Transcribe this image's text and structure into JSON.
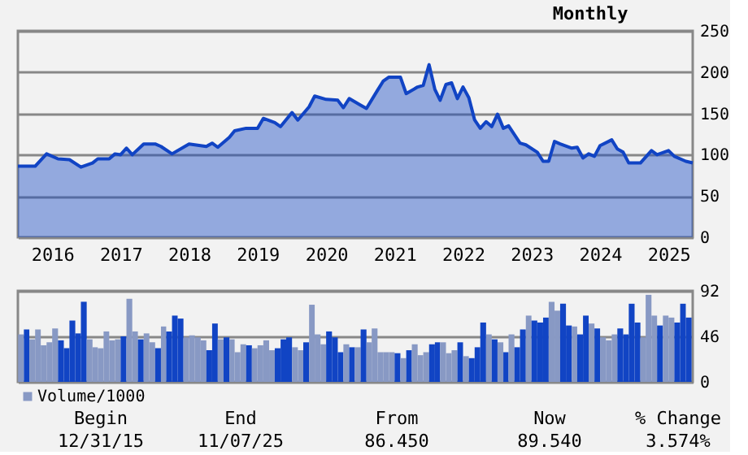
{
  "chart_data": [
    {
      "type": "area",
      "subtitle": "Monthly",
      "xlim": [
        "2015-12-31",
        "2025-11-07"
      ],
      "xticks": [
        {
          "value": "2016-07",
          "label": "2016"
        },
        {
          "value": "2017-07",
          "label": "2017"
        },
        {
          "value": "2018-07",
          "label": "2018"
        },
        {
          "value": "2019-07",
          "label": "2019"
        },
        {
          "value": "2020-07",
          "label": "2020"
        },
        {
          "value": "2021-07",
          "label": "2021"
        },
        {
          "value": "2022-07",
          "label": "2022"
        },
        {
          "value": "2023-07",
          "label": "2023"
        },
        {
          "value": "2024-07",
          "label": "2024"
        },
        {
          "value": "2025-07",
          "label": "2025"
        }
      ],
      "ylim": [
        0,
        250
      ],
      "yticks": [
        0,
        50,
        100,
        150,
        200,
        250
      ],
      "grid": "y",
      "x": [
        "2015-12-31",
        "2016-04",
        "2016-06",
        "2016-08",
        "2016-10",
        "2016-12",
        "2017-02",
        "2017-03",
        "2017-05",
        "2017-06",
        "2017-07",
        "2017-08",
        "2017-09",
        "2017-11",
        "2018-01",
        "2018-02",
        "2018-04",
        "2018-07",
        "2018-10",
        "2018-11",
        "2018-12",
        "2019-02",
        "2019-03",
        "2019-05",
        "2019-07",
        "2019-08",
        "2019-10",
        "2019-11",
        "2020-01",
        "2020-02",
        "2020-04",
        "2020-05",
        "2020-07",
        "2020-09",
        "2020-10",
        "2020-11",
        "2021-01",
        "2021-02",
        "2021-04",
        "2021-05",
        "2021-06",
        "2021-08",
        "2021-09",
        "2021-11",
        "2021-12",
        "2022-01",
        "2022-02",
        "2022-03",
        "2022-04",
        "2022-05",
        "2022-06",
        "2022-07",
        "2022-08",
        "2022-09",
        "2022-10",
        "2022-11",
        "2022-12",
        "2023-01",
        "2023-02",
        "2023-03",
        "2023-05",
        "2023-06",
        "2023-08",
        "2023-09",
        "2023-10",
        "2023-11",
        "2023-12",
        "2024-02",
        "2024-03",
        "2024-04",
        "2024-05",
        "2024-06",
        "2024-07",
        "2024-09",
        "2024-10",
        "2024-11",
        "2024-12",
        "2025-02",
        "2025-04",
        "2025-05",
        "2025-07",
        "2025-08",
        "2025-10",
        "2025-11-07"
      ],
      "series": [
        {
          "color": "#1144c4",
          "values": [
            86,
            86,
            101,
            95,
            94,
            85,
            90,
            95,
            95,
            101,
            100,
            108,
            100,
            113,
            113,
            110,
            101,
            113,
            110,
            114,
            109,
            121,
            129,
            132,
            132,
            144,
            139,
            134,
            151,
            142,
            158,
            171,
            167,
            166,
            157,
            168,
            160,
            156,
            178,
            189,
            194,
            194,
            174,
            182,
            184,
            209,
            179,
            166,
            185,
            187,
            168,
            182,
            169,
            142,
            132,
            140,
            134,
            149,
            132,
            135,
            114,
            112,
            103,
            92,
            92,
            116,
            113,
            108,
            109,
            96,
            101,
            98,
            111,
            118,
            107,
            103,
            90,
            90,
            105,
            100,
            105,
            98,
            92,
            90
          ]
        }
      ]
    },
    {
      "type": "bar",
      "xlim": [
        "2015-12-31",
        "2025-11-07"
      ],
      "ylim": [
        0,
        92
      ],
      "yticks": [
        0,
        46,
        92
      ],
      "grid": "y",
      "tick_labels": "y",
      "legend": "bottom left",
      "x": [
        "2016-01",
        "2016-02",
        "2016-03",
        "2016-04",
        "2016-05",
        "2016-06",
        "2016-07",
        "2016-08",
        "2016-09",
        "2016-10",
        "2016-11",
        "2016-12",
        "2017-01",
        "2017-02",
        "2017-03",
        "2017-04",
        "2017-05",
        "2017-06",
        "2017-07",
        "2017-08",
        "2017-09",
        "2017-10",
        "2017-11",
        "2017-12",
        "2018-01",
        "2018-02",
        "2018-03",
        "2018-04",
        "2018-05",
        "2018-06",
        "2018-07",
        "2018-08",
        "2018-09",
        "2018-10",
        "2018-11",
        "2018-12",
        "2019-01",
        "2019-02",
        "2019-03",
        "2019-04",
        "2019-05",
        "2019-06",
        "2019-07",
        "2019-08",
        "2019-09",
        "2019-10",
        "2019-11",
        "2019-12",
        "2020-01",
        "2020-02",
        "2020-03",
        "2020-04",
        "2020-05",
        "2020-06",
        "2020-07",
        "2020-08",
        "2020-09",
        "2020-10",
        "2020-11",
        "2020-12",
        "2021-01",
        "2021-02",
        "2021-03",
        "2021-04",
        "2021-05",
        "2021-06",
        "2021-07",
        "2021-08",
        "2021-09",
        "2021-10",
        "2021-11",
        "2021-12",
        "2022-01",
        "2022-02",
        "2022-03",
        "2022-04",
        "2022-05",
        "2022-06",
        "2022-07",
        "2022-08",
        "2022-09",
        "2022-10",
        "2022-11",
        "2022-12",
        "2023-01",
        "2023-02",
        "2023-03",
        "2023-04",
        "2023-05",
        "2023-06",
        "2023-07",
        "2023-08",
        "2023-09",
        "2023-10",
        "2023-11",
        "2023-12",
        "2024-01",
        "2024-02",
        "2024-03",
        "2024-04",
        "2024-05",
        "2024-06",
        "2024-07",
        "2024-08",
        "2024-09",
        "2024-10",
        "2024-11",
        "2024-12",
        "2025-01",
        "2025-02",
        "2025-03",
        "2025-04",
        "2025-05",
        "2025-06",
        "2025-07",
        "2025-08",
        "2025-09",
        "2025-10"
      ],
      "series": [
        {
          "name": "Volume/1000",
          "color": "#8899c4",
          "values": [
            48,
            53,
            43,
            53,
            37,
            40,
            54,
            42,
            34,
            62,
            49,
            81,
            43,
            35,
            34,
            51,
            42,
            43,
            46,
            84,
            51,
            43,
            49,
            40,
            34,
            56,
            51,
            67,
            64,
            45,
            47,
            45,
            42,
            32,
            59,
            43,
            45,
            43,
            30,
            38,
            37,
            34,
            37,
            42,
            32,
            34,
            43,
            45,
            35,
            32,
            40,
            78,
            48,
            38,
            51,
            45,
            30,
            38,
            35,
            35,
            53,
            40,
            54,
            30,
            30,
            30,
            29,
            24,
            32,
            38,
            27,
            30,
            38,
            40,
            40,
            29,
            32,
            40,
            26,
            24,
            35,
            60,
            48,
            43,
            40,
            30,
            48,
            35,
            53,
            67,
            62,
            60,
            65,
            81,
            72,
            79,
            57,
            56,
            48,
            67,
            59,
            54,
            45,
            42,
            48,
            54,
            48,
            79,
            60,
            45,
            88,
            67,
            57,
            67,
            65,
            60,
            79,
            65
          ],
          "colors": [
            "#8899c4",
            "#1144c4",
            "#8899c4",
            "#8899c4",
            "#8899c4",
            "#8899c4",
            "#8899c4",
            "#1144c4",
            "#1144c4",
            "#1144c4",
            "#1144c4",
            "#1144c4",
            "#8899c4",
            "#8899c4",
            "#8899c4",
            "#8899c4",
            "#8899c4",
            "#8899c4",
            "#1144c4",
            "#8899c4",
            "#8899c4",
            "#1144c4",
            "#8899c4",
            "#8899c4",
            "#1144c4",
            "#8899c4",
            "#1144c4",
            "#1144c4",
            "#1144c4",
            "#8899c4",
            "#8899c4",
            "#8899c4",
            "#8899c4",
            "#1144c4",
            "#1144c4",
            "#8899c4",
            "#1144c4",
            "#8899c4",
            "#8899c4",
            "#8899c4",
            "#1144c4",
            "#8899c4",
            "#8899c4",
            "#8899c4",
            "#8899c4",
            "#1144c4",
            "#1144c4",
            "#1144c4",
            "#8899c4",
            "#8899c4",
            "#1144c4",
            "#8899c4",
            "#8899c4",
            "#8899c4",
            "#1144c4",
            "#1144c4",
            "#1144c4",
            "#8899c4",
            "#1144c4",
            "#8899c4",
            "#1144c4",
            "#8899c4",
            "#8899c4",
            "#8899c4",
            "#8899c4",
            "#8899c4",
            "#1144c4",
            "#8899c4",
            "#1144c4",
            "#8899c4",
            "#8899c4",
            "#8899c4",
            "#1144c4",
            "#1144c4",
            "#8899c4",
            "#8899c4",
            "#8899c4",
            "#1144c4",
            "#8899c4",
            "#1144c4",
            "#1144c4",
            "#1144c4",
            "#8899c4",
            "#1144c4",
            "#8899c4",
            "#1144c4",
            "#8899c4",
            "#1144c4",
            "#1144c4",
            "#8899c4",
            "#1144c4",
            "#1144c4",
            "#1144c4",
            "#8899c4",
            "#8899c4",
            "#1144c4",
            "#1144c4",
            "#8899c4",
            "#1144c4",
            "#1144c4",
            "#8899c4",
            "#1144c4",
            "#8899c4",
            "#8899c4",
            "#8899c4",
            "#1144c4",
            "#1144c4",
            "#1144c4",
            "#1144c4",
            "#8899c4",
            "#8899c4",
            "#8899c4",
            "#1144c4",
            "#8899c4",
            "#8899c4",
            "#1144c4",
            "#1144c4",
            "#1144c4"
          ]
        }
      ],
      "annotations": [
        "Begin",
        "12/31/15",
        "End",
        "11/07/25",
        "From",
        "86.450",
        "Now",
        "89.540",
        "% Change",
        "3.574%"
      ]
    }
  ]
}
